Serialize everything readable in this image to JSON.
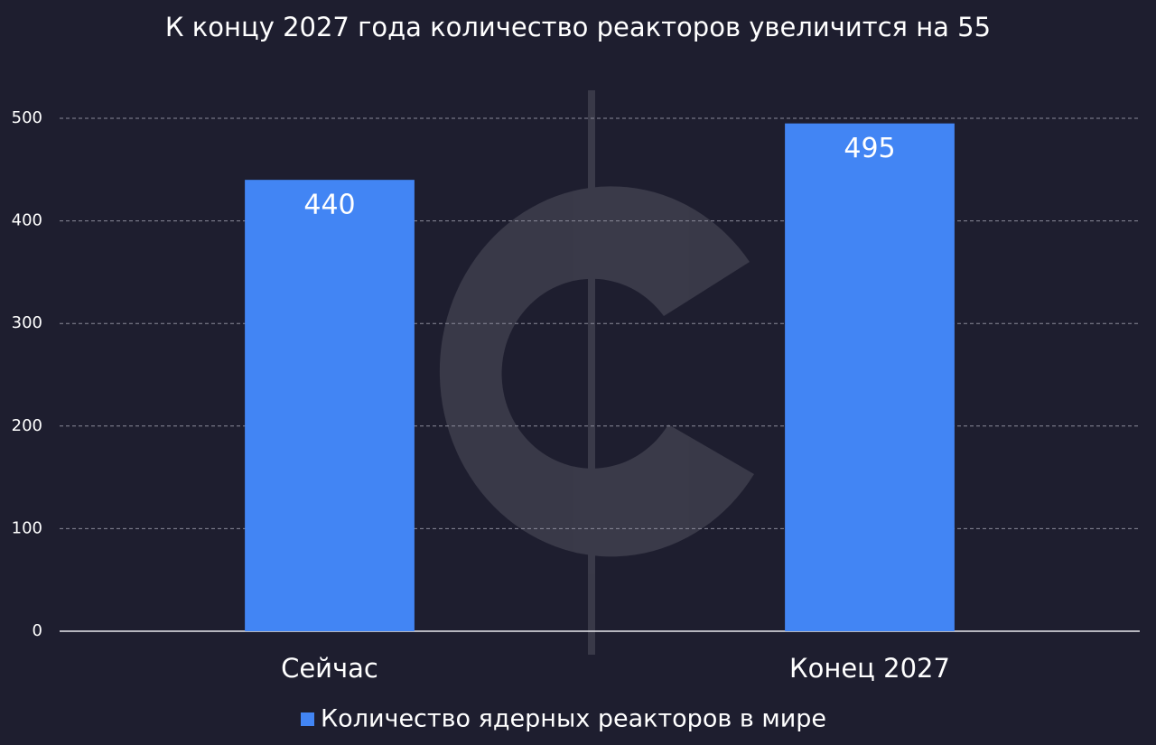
{
  "chart_data": {
    "type": "bar",
    "title": "К концу 2027 года количество реакторов увеличится на 55",
    "categories": [
      "Сейчас",
      "Конец 2027"
    ],
    "series": [
      {
        "name": "Количество ядерных реакторов в мире",
        "color": "#4285f4",
        "values": [
          440,
          495
        ]
      }
    ],
    "ylim": [
      0,
      500
    ],
    "yticks": [
      0,
      100,
      200,
      300,
      400,
      500
    ],
    "grid": true,
    "legend": "bottom",
    "data_labels": true
  }
}
